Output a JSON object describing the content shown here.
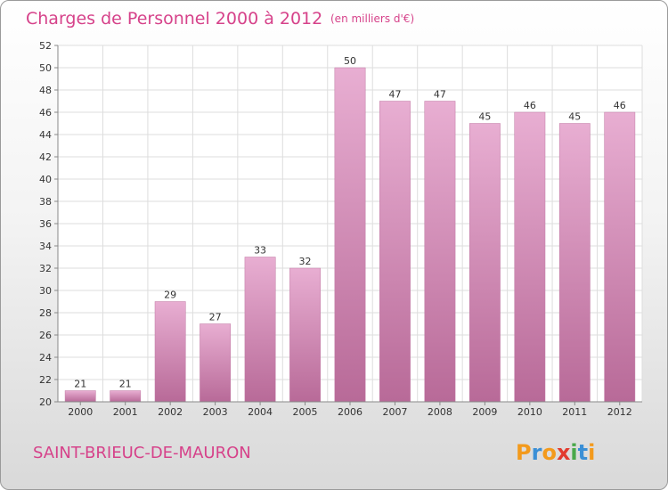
{
  "title": "Charges de Personnel 2000 à 2012",
  "unit": "(en milliers d'€)",
  "commune": "SAINT-BRIEUC-DE-MAURON",
  "logo": "Proxiti",
  "colors": {
    "title": "#d6428a",
    "bar": "#d898bc",
    "bar_top": "#e8aed2",
    "bar_bottom": "#b86a98",
    "logo_letters": [
      "#f39a1c",
      "#3a8fd6",
      "#f39a1c",
      "#e23b2e",
      "#4aa84a",
      "#3a8fd6",
      "#f39a1c"
    ]
  },
  "chart_data": {
    "type": "bar",
    "title": "Charges de Personnel 2000 à 2012",
    "subtitle": "(en milliers d'€)",
    "categories": [
      "2000",
      "2001",
      "2002",
      "2003",
      "2004",
      "2005",
      "2006",
      "2007",
      "2008",
      "2009",
      "2010",
      "2011",
      "2012"
    ],
    "values": [
      21,
      21,
      29,
      27,
      33,
      32,
      50,
      47,
      47,
      45,
      46,
      45,
      46
    ],
    "ylim": [
      20,
      52
    ],
    "yticks": [
      20,
      22,
      24,
      26,
      28,
      30,
      32,
      34,
      36,
      38,
      40,
      42,
      44,
      46,
      48,
      50,
      52
    ],
    "grid": true,
    "data_labels": true
  }
}
